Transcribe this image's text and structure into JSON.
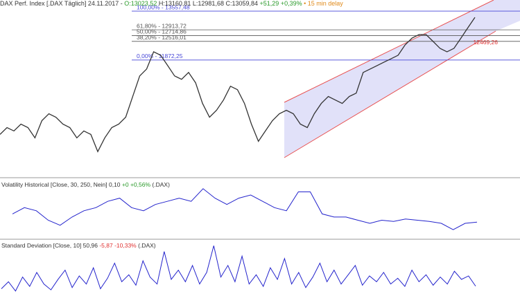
{
  "chart_data": [
    {
      "type": "line",
      "title": "DAX Perf. Index [.DAX Täglich] 24.11.2017 -",
      "header": {
        "open": "O:13023,52",
        "high": "H:13160,81",
        "low": "L:12981,68",
        "close": "C:13059,84",
        "change": "+51,29 +0,39%",
        "delay": "• 15 min delay"
      },
      "color": "#333333",
      "values": [
        9309,
        9546,
        9428,
        9665,
        9546,
        9191,
        9784,
        10021,
        9902,
        9665,
        9546,
        9191,
        9428,
        9309,
        8716,
        9191,
        9546,
        9665,
        9902,
        10614,
        11326,
        11564,
        12157,
        12038,
        11682,
        11326,
        11208,
        11445,
        11089,
        10377,
        9902,
        10140,
        10496,
        10970,
        10852,
        10377,
        9665,
        9072,
        9428,
        9784,
        10021,
        10140,
        10021,
        9665,
        9546,
        10021,
        10377,
        10614,
        10496,
        10377,
        10614,
        10733,
        11445,
        11564,
        11682,
        11801,
        11919,
        12038,
        12394,
        12631,
        12750,
        12750,
        12513,
        12275,
        12157,
        12275,
        12631,
        12987,
        13343
      ],
      "ylim": [
        7890,
        13750
      ],
      "fib_levels": [
        {
          "value": 13557.48,
          "label": "100,00% - 13557,48",
          "color": "#4646d8"
        },
        {
          "value": 12913.72,
          "label": "61,80% - 12913,72",
          "color": "#555555"
        },
        {
          "value": 12714.86,
          "label": "50,00% - 12714,86",
          "color": "#555555"
        },
        {
          "value": 12516.01,
          "label": "38,20% - 12516,01",
          "color": "#555555"
        },
        {
          "value": 11872.25,
          "label": "0,00% - 11872,25",
          "color": "#4646d8"
        }
      ],
      "channel_label": {
        "value": 12469.26,
        "label": "12469,26",
        "color": "#e03030"
      }
    },
    {
      "type": "line",
      "title": "Volatility Historical [Close, 30, 250, Nein]",
      "last": "0,10",
      "change": "+0 +0,56%",
      "symbol": "(.DAX)",
      "color": "#2222cc",
      "values": [
        0.126,
        0.146,
        0.136,
        0.106,
        0.09,
        0.116,
        0.136,
        0.146,
        0.166,
        0.176,
        0.146,
        0.136,
        0.156,
        0.166,
        0.176,
        0.166,
        0.206,
        0.176,
        0.156,
        0.176,
        0.186,
        0.166,
        0.146,
        0.136,
        0.196,
        0.196,
        0.126,
        0.116,
        0.116,
        0.106,
        0.096,
        0.106,
        0.102,
        0.11,
        0.106,
        0.102,
        0.096,
        0.076,
        0.096,
        0.1
      ],
      "ylim": [
        0.05,
        0.23
      ]
    },
    {
      "type": "line",
      "title": "Standard Deviation [Close, 10]",
      "last": "50,96",
      "change": "-5,87 -10,33%",
      "symbol": "(.DAX)",
      "color": "#2222cc",
      "values": [
        40,
        70,
        30,
        90,
        50,
        110,
        60,
        35,
        80,
        120,
        45,
        95,
        60,
        130,
        40,
        85,
        150,
        70,
        100,
        55,
        160,
        90,
        60,
        200,
        80,
        120,
        70,
        140,
        60,
        110,
        225,
        90,
        140,
        70,
        180,
        60,
        100,
        50,
        130,
        80,
        170,
        60,
        110,
        45,
        90,
        150,
        70,
        120,
        60,
        100,
        140,
        55,
        95,
        70,
        110,
        60,
        85,
        50,
        120,
        70,
        100,
        55,
        90,
        60,
        115,
        80,
        95,
        51
      ],
      "ylim": [
        0,
        235
      ]
    }
  ]
}
